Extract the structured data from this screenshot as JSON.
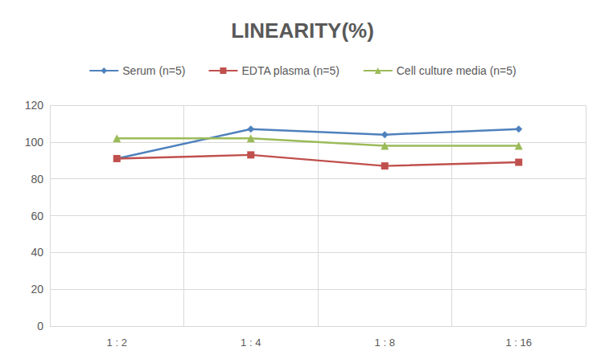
{
  "chart_data": {
    "type": "line",
    "title": "LINEARITY(%)",
    "categories": [
      "1:2",
      "1:4",
      "1:8",
      "1:16"
    ],
    "series": [
      {
        "name": "Serum (n=5)",
        "color": "#4f81bd",
        "marker": "diamond",
        "values": [
          91,
          107,
          104,
          107
        ]
      },
      {
        "name": "EDTA plasma (n=5)",
        "color": "#c0504d",
        "marker": "square",
        "values": [
          91,
          93,
          87,
          89
        ]
      },
      {
        "name": "Cell culture media (n=5)",
        "color": "#9bbb59",
        "marker": "triangle",
        "values": [
          102,
          102,
          98,
          98
        ]
      }
    ],
    "ylim": [
      0,
      120
    ],
    "yticks": [
      0,
      20,
      40,
      60,
      80,
      100,
      120
    ],
    "grid": true,
    "legend": "top"
  }
}
